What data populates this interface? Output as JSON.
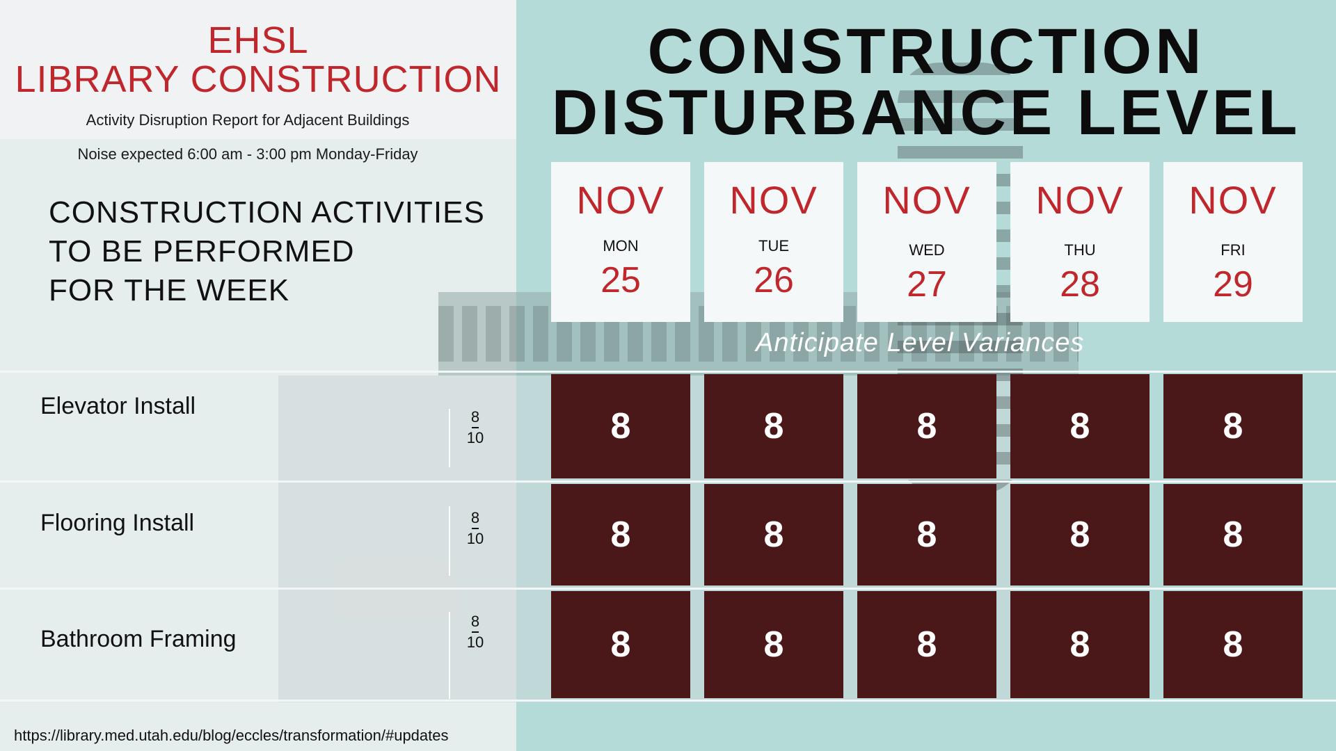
{
  "header": {
    "title_line1": "EHSL",
    "title_line2": "LIBRARY CONSTRUCTION",
    "subtitle": "Activity Disruption Report for Adjacent Buildings",
    "noise_note": "Noise expected 6:00 am - 3:00 pm Monday-Friday"
  },
  "activities_heading": [
    "CONSTRUCTION ACTIVITIES",
    "TO BE PERFORMED",
    "FOR THE WEEK"
  ],
  "main_title": [
    "CONSTRUCTION",
    "DISTURBANCE LEVEL"
  ],
  "days": [
    {
      "month": "NOV",
      "weekday": "MON",
      "date": "25"
    },
    {
      "month": "NOV",
      "weekday": "TUE",
      "date": "26"
    },
    {
      "month": "NOV",
      "weekday": "WED",
      "date": "27"
    },
    {
      "month": "NOV",
      "weekday": "THU",
      "date": "28"
    },
    {
      "month": "NOV",
      "weekday": "FRI",
      "date": "29"
    }
  ],
  "variance_note": "Anticipate Level Variances",
  "activities": [
    {
      "name": "Elevator Install",
      "scale_top": "8",
      "scale_bottom": "10",
      "levels": [
        "8",
        "8",
        "8",
        "8",
        "8"
      ]
    },
    {
      "name": "Flooring Install",
      "scale_top": "8",
      "scale_bottom": "10",
      "levels": [
        "8",
        "8",
        "8",
        "8",
        "8"
      ]
    },
    {
      "name": "Bathroom Framing",
      "scale_top": "8",
      "scale_bottom": "10",
      "levels": [
        "8",
        "8",
        "8",
        "8",
        "8"
      ]
    }
  ],
  "footer_url": "https://library.med.utah.edu/blog/eccles/transformation/#updates",
  "colors": {
    "accent_red": "#c0272d",
    "level_cell": "#4a1818",
    "teal_panel": "#b5dbd9"
  }
}
